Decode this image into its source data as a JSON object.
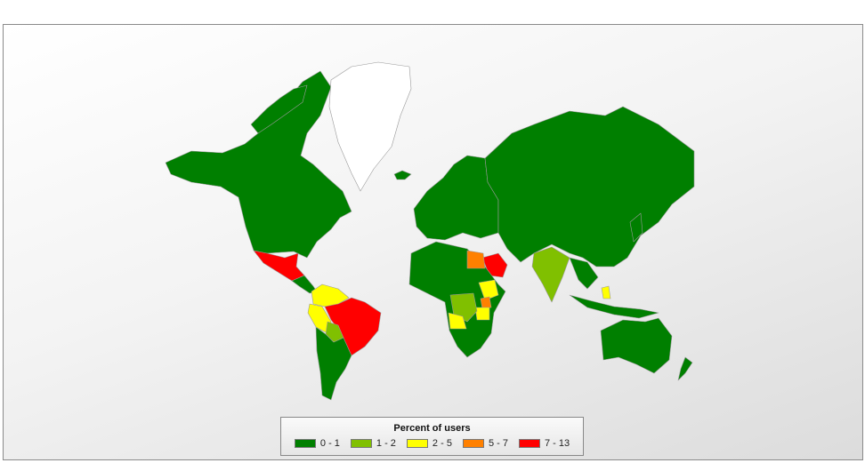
{
  "legend": {
    "title": "Percent of users",
    "bins": [
      {
        "label": "0 - 1",
        "color": "#007f00"
      },
      {
        "label": "1 - 2",
        "color": "#80c000"
      },
      {
        "label": "2 - 5",
        "color": "#ffff00"
      },
      {
        "label": "5 - 7",
        "color": "#ff8000"
      },
      {
        "label": "7 - 13",
        "color": "#ff0000"
      }
    ]
  },
  "no_data_color": "#ffffff",
  "regions": [
    {
      "name": "Canada/USA",
      "bin": "0 - 1"
    },
    {
      "name": "Mexico",
      "bin": "7 - 13"
    },
    {
      "name": "Brazil",
      "bin": "7 - 13"
    },
    {
      "name": "Colombia",
      "bin": "2 - 5"
    },
    {
      "name": "Peru",
      "bin": "2 - 5"
    },
    {
      "name": "Bolivia",
      "bin": "1 - 2"
    },
    {
      "name": "Egypt",
      "bin": "5 - 7"
    },
    {
      "name": "Saudi Arabia",
      "bin": "7 - 13"
    },
    {
      "name": "Ethiopia",
      "bin": "2 - 5"
    },
    {
      "name": "Kenya",
      "bin": "5 - 7"
    },
    {
      "name": "Tanzania",
      "bin": "2 - 5"
    },
    {
      "name": "DR Congo",
      "bin": "1 - 2"
    },
    {
      "name": "Angola",
      "bin": "2 - 5"
    },
    {
      "name": "India",
      "bin": "1 - 2"
    },
    {
      "name": "Philippines",
      "bin": "2 - 5"
    },
    {
      "name": "Greenland",
      "bin": "none"
    }
  ]
}
